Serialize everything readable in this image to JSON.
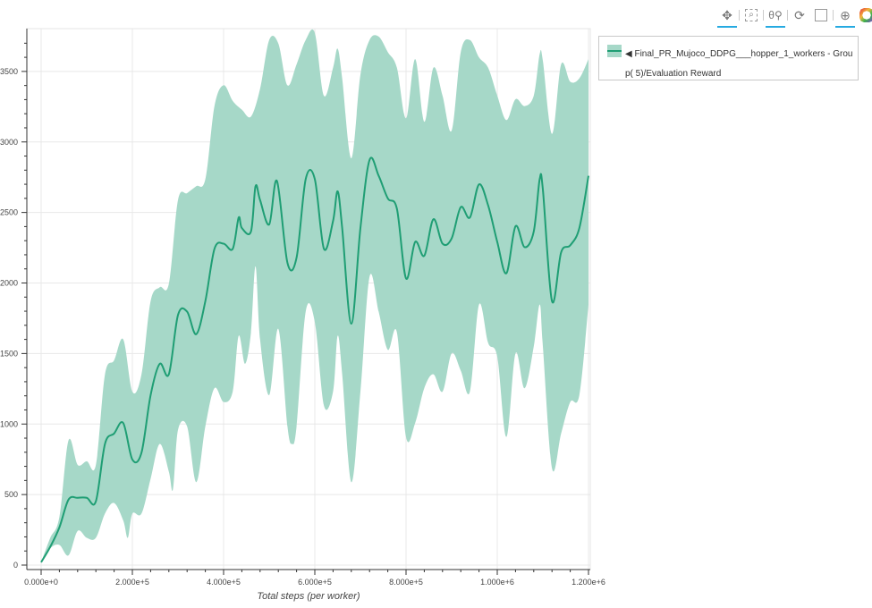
{
  "toolbar": {
    "tools": [
      {
        "name": "pan",
        "icon": "pan-icon",
        "active": true
      },
      {
        "name": "box-zoom",
        "icon": "box-zoom-icon",
        "active": false
      },
      {
        "name": "wheel-zoom",
        "icon": "wheel-zoom-icon",
        "active": true
      },
      {
        "name": "reset",
        "icon": "reset-icon",
        "active": false
      },
      {
        "name": "save",
        "icon": "save-icon",
        "active": false
      },
      {
        "name": "crosshair",
        "icon": "crosshair-icon",
        "active": true
      },
      {
        "name": "bokeh-logo",
        "icon": "bokeh-logo-icon",
        "active": false
      }
    ]
  },
  "legend": {
    "label": "◀ Final_PR_Mujoco_DDPG___hopper_1_workers - Group( 5)/Evaluation Reward"
  },
  "chart_data": {
    "type": "line",
    "xlabel": "Total steps (per worker)",
    "ylabel": "",
    "xlim": [
      -30000,
      1210000
    ],
    "ylim": [
      -40,
      3780
    ],
    "grid": true,
    "legend_position": "right",
    "colors": {
      "line": "#1f9e74",
      "band": "#a6d8c8"
    },
    "x_ticks": [
      "0.000e+0",
      "2.000e+5",
      "4.000e+5",
      "6.000e+5",
      "8.000e+5",
      "1.000e+6",
      "1.200e+6"
    ],
    "x_tick_values": [
      0,
      200000,
      400000,
      600000,
      800000,
      1000000,
      1200000
    ],
    "y_ticks": [
      0,
      500,
      1000,
      1500,
      2000,
      2500,
      3000,
      3500
    ],
    "series": [
      {
        "name": "Final_PR_Mujoco_DDPG___hopper_1_workers - Group( 5)/Evaluation Reward",
        "mean": [
          [
            0,
            20
          ],
          [
            20000,
            130
          ],
          [
            40000,
            267
          ],
          [
            60000,
            464
          ],
          [
            80000,
            477
          ],
          [
            100000,
            477
          ],
          [
            120000,
            452
          ],
          [
            140000,
            860
          ],
          [
            160000,
            933
          ],
          [
            180000,
            1007
          ],
          [
            200000,
            748
          ],
          [
            220000,
            797
          ],
          [
            240000,
            1205
          ],
          [
            260000,
            1427
          ],
          [
            280000,
            1353
          ],
          [
            300000,
            1773
          ],
          [
            320000,
            1797
          ],
          [
            340000,
            1637
          ],
          [
            360000,
            1871
          ],
          [
            380000,
            2242
          ],
          [
            400000,
            2279
          ],
          [
            420000,
            2242
          ],
          [
            433000,
            2464
          ],
          [
            440000,
            2390
          ],
          [
            460000,
            2365
          ],
          [
            470000,
            2686
          ],
          [
            480000,
            2588
          ],
          [
            500000,
            2415
          ],
          [
            517000,
            2723
          ],
          [
            540000,
            2143
          ],
          [
            560000,
            2180
          ],
          [
            580000,
            2736
          ],
          [
            600000,
            2736
          ],
          [
            620000,
            2242
          ],
          [
            640000,
            2440
          ],
          [
            650000,
            2650
          ],
          [
            660000,
            2390
          ],
          [
            680000,
            1711
          ],
          [
            700000,
            2390
          ],
          [
            720000,
            2872
          ],
          [
            740000,
            2760
          ],
          [
            760000,
            2600
          ],
          [
            780000,
            2526
          ],
          [
            800000,
            2032
          ],
          [
            820000,
            2291
          ],
          [
            840000,
            2193
          ],
          [
            860000,
            2452
          ],
          [
            880000,
            2279
          ],
          [
            900000,
            2316
          ],
          [
            920000,
            2538
          ],
          [
            940000,
            2464
          ],
          [
            960000,
            2699
          ],
          [
            980000,
            2550
          ],
          [
            1000000,
            2291
          ],
          [
            1020000,
            2069
          ],
          [
            1040000,
            2402
          ],
          [
            1060000,
            2254
          ],
          [
            1080000,
            2365
          ],
          [
            1093000,
            2736
          ],
          [
            1100000,
            2662
          ],
          [
            1120000,
            1871
          ],
          [
            1140000,
            2217
          ],
          [
            1160000,
            2267
          ],
          [
            1180000,
            2390
          ],
          [
            1200000,
            2760
          ]
        ],
        "upper": [
          [
            0,
            20
          ],
          [
            20000,
            193
          ],
          [
            40000,
            341
          ],
          [
            60000,
            884
          ],
          [
            80000,
            711
          ],
          [
            100000,
            736
          ],
          [
            120000,
            711
          ],
          [
            140000,
            1353
          ],
          [
            160000,
            1452
          ],
          [
            180000,
            1600
          ],
          [
            200000,
            1230
          ],
          [
            220000,
            1353
          ],
          [
            240000,
            1871
          ],
          [
            260000,
            1970
          ],
          [
            280000,
            1995
          ],
          [
            300000,
            2588
          ],
          [
            320000,
            2637
          ],
          [
            340000,
            2686
          ],
          [
            360000,
            2736
          ],
          [
            380000,
            3254
          ],
          [
            400000,
            3402
          ],
          [
            420000,
            3291
          ],
          [
            440000,
            3229
          ],
          [
            460000,
            3180
          ],
          [
            480000,
            3377
          ],
          [
            500000,
            3723
          ],
          [
            520000,
            3698
          ],
          [
            540000,
            3402
          ],
          [
            560000,
            3550
          ],
          [
            580000,
            3723
          ],
          [
            600000,
            3772
          ],
          [
            620000,
            3328
          ],
          [
            640000,
            3526
          ],
          [
            650000,
            3661
          ],
          [
            660000,
            3451
          ],
          [
            680000,
            2884
          ],
          [
            700000,
            3476
          ],
          [
            720000,
            3723
          ],
          [
            740000,
            3747
          ],
          [
            760000,
            3637
          ],
          [
            780000,
            3526
          ],
          [
            800000,
            3168
          ],
          [
            820000,
            3587
          ],
          [
            840000,
            3143
          ],
          [
            860000,
            3526
          ],
          [
            880000,
            3328
          ],
          [
            900000,
            3081
          ],
          [
            920000,
            3637
          ],
          [
            940000,
            3723
          ],
          [
            960000,
            3600
          ],
          [
            980000,
            3526
          ],
          [
            1000000,
            3328
          ],
          [
            1020000,
            3155
          ],
          [
            1040000,
            3303
          ],
          [
            1060000,
            3254
          ],
          [
            1080000,
            3328
          ],
          [
            1093000,
            3624
          ],
          [
            1100000,
            3575
          ],
          [
            1120000,
            3057
          ],
          [
            1140000,
            3550
          ],
          [
            1160000,
            3427
          ],
          [
            1180000,
            3451
          ],
          [
            1200000,
            3587
          ]
        ],
        "lower": [
          [
            0,
            20
          ],
          [
            20000,
            119
          ],
          [
            40000,
            143
          ],
          [
            60000,
            69
          ],
          [
            80000,
            242
          ],
          [
            100000,
            193
          ],
          [
            120000,
            193
          ],
          [
            140000,
            365
          ],
          [
            160000,
            440
          ],
          [
            180000,
            316
          ],
          [
            190000,
            193
          ],
          [
            200000,
            365
          ],
          [
            220000,
            365
          ],
          [
            240000,
            612
          ],
          [
            260000,
            859
          ],
          [
            280000,
            662
          ],
          [
            289000,
            538
          ],
          [
            300000,
            958
          ],
          [
            320000,
            983
          ],
          [
            340000,
            588
          ],
          [
            360000,
            983
          ],
          [
            380000,
            1254
          ],
          [
            400000,
            1156
          ],
          [
            420000,
            1230
          ],
          [
            433000,
            1625
          ],
          [
            447000,
            1427
          ],
          [
            460000,
            1649
          ],
          [
            470000,
            2118
          ],
          [
            480000,
            1600
          ],
          [
            500000,
            1205
          ],
          [
            520000,
            1674
          ],
          [
            540000,
            983
          ],
          [
            550000,
            859
          ],
          [
            560000,
            983
          ],
          [
            580000,
            1797
          ],
          [
            600000,
            1723
          ],
          [
            620000,
            1131
          ],
          [
            640000,
            1230
          ],
          [
            650000,
            1625
          ],
          [
            660000,
            1353
          ],
          [
            680000,
            588
          ],
          [
            700000,
            1230
          ],
          [
            720000,
            2044
          ],
          [
            740000,
            1797
          ],
          [
            760000,
            1526
          ],
          [
            780000,
            1649
          ],
          [
            800000,
            909
          ],
          [
            820000,
            1007
          ],
          [
            840000,
            1254
          ],
          [
            860000,
            1353
          ],
          [
            880000,
            1230
          ],
          [
            900000,
            1501
          ],
          [
            920000,
            1378
          ],
          [
            940000,
            1230
          ],
          [
            960000,
            1847
          ],
          [
            980000,
            1575
          ],
          [
            1000000,
            1477
          ],
          [
            1020000,
            909
          ],
          [
            1040000,
            1501
          ],
          [
            1060000,
            1254
          ],
          [
            1080000,
            1550
          ],
          [
            1093000,
            1847
          ],
          [
            1100000,
            1550
          ],
          [
            1120000,
            686
          ],
          [
            1140000,
            933
          ],
          [
            1160000,
            1156
          ],
          [
            1180000,
            1205
          ],
          [
            1200000,
            1847
          ]
        ]
      }
    ]
  }
}
